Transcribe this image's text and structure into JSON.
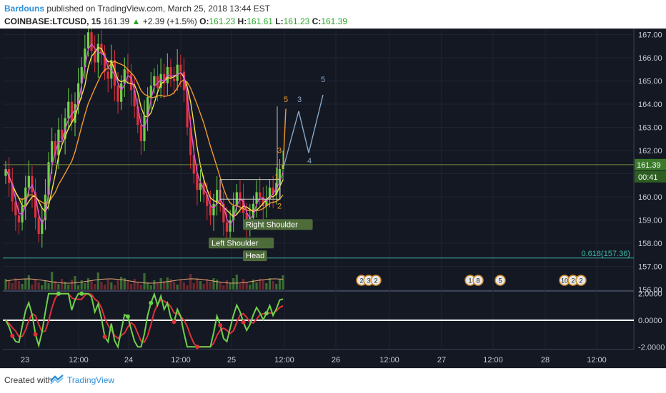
{
  "header": {
    "author": "Bardouns",
    "published_text": "published on TradingView.com, March 25, 2018 13:44 EST",
    "symbol": "COINBASE:LTCUSD, 15",
    "last": "161.39",
    "change_arrow": "▲",
    "change": "+2.39 (+1.5%)",
    "open_label": "O:",
    "open": "161.23",
    "high_label": "H:",
    "high": "161.61",
    "low_label": "L:",
    "low": "161.23",
    "close_label": "C:",
    "close": "161.39"
  },
  "colors": {
    "background": "#141823",
    "up": "#6fd14b",
    "down": "#e0303a",
    "ma_orange": "#f29a2e",
    "ma_yellow": "#f3e24a",
    "wave": "#8aa8c8",
    "fib": "#3fb9a8",
    "price_tag": "#3b7a2a"
  },
  "chart_data": {
    "type": "candlestick",
    "price_axis": {
      "ticks": [
        "167.00",
        "166.00",
        "165.00",
        "164.00",
        "163.00",
        "162.00",
        "161.00",
        "160.00",
        "159.00",
        "158.00",
        "157.00",
        "156.00"
      ],
      "range": [
        156.0,
        167.2
      ]
    },
    "time_axis": {
      "ticks": [
        "23",
        "12:00",
        "24",
        "12:00",
        "25",
        "12:00",
        "26",
        "12:00",
        "27",
        "12:00",
        "28",
        "12:00"
      ]
    },
    "last_price_tag": "161.39",
    "countdown_tag": "00:41",
    "fib_label": "0.618(157.36)",
    "fib_level": 157.36,
    "series_close": [
      161.2,
      160.6,
      159.8,
      159.2,
      158.9,
      159.6,
      160.4,
      160.9,
      160.2,
      159.1,
      158.4,
      159.0,
      160.1,
      161.5,
      162.4,
      161.8,
      162.9,
      162.5,
      163.4,
      164.1,
      163.2,
      164.0,
      164.9,
      165.6,
      166.4,
      167.1,
      166.3,
      165.8,
      166.6,
      166.2,
      165.4,
      165.1,
      165.9,
      164.8,
      164.1,
      164.9,
      165.5,
      165.3,
      164.6,
      163.9,
      163.1,
      162.4,
      163.5,
      164.3,
      164.8,
      165.2,
      164.7,
      165.3,
      164.9,
      165.6,
      165.1,
      165.0,
      165.7,
      165.4,
      164.6,
      163.0,
      161.8,
      161.0,
      160.3,
      160.6,
      160.1,
      159.6,
      159.2,
      159.7,
      160.3,
      159.7,
      158.9,
      158.5,
      159.0,
      159.6,
      160.2,
      159.9,
      159.3,
      158.8,
      159.1,
      159.7,
      160.2,
      160.0,
      159.6,
      159.9,
      160.4,
      160.1,
      160.6,
      161.2,
      161.4
    ],
    "waves": {
      "orange": [
        "1",
        "2",
        "3",
        "5"
      ],
      "blue": [
        "3",
        "4",
        "5"
      ]
    },
    "pattern_labels": [
      "Left Shoulder",
      "Head",
      "Right Shoulder"
    ],
    "events": [
      "2",
      "3",
      "2",
      "1",
      "8",
      "5",
      "10",
      "2",
      "2"
    ],
    "oscillator": {
      "ticks": [
        "2.0000",
        "0.0000",
        "-2.0000"
      ],
      "range": [
        -2.2,
        2.2
      ]
    }
  },
  "footer": {
    "created_with": "Created with",
    "brand": "TradingView"
  }
}
